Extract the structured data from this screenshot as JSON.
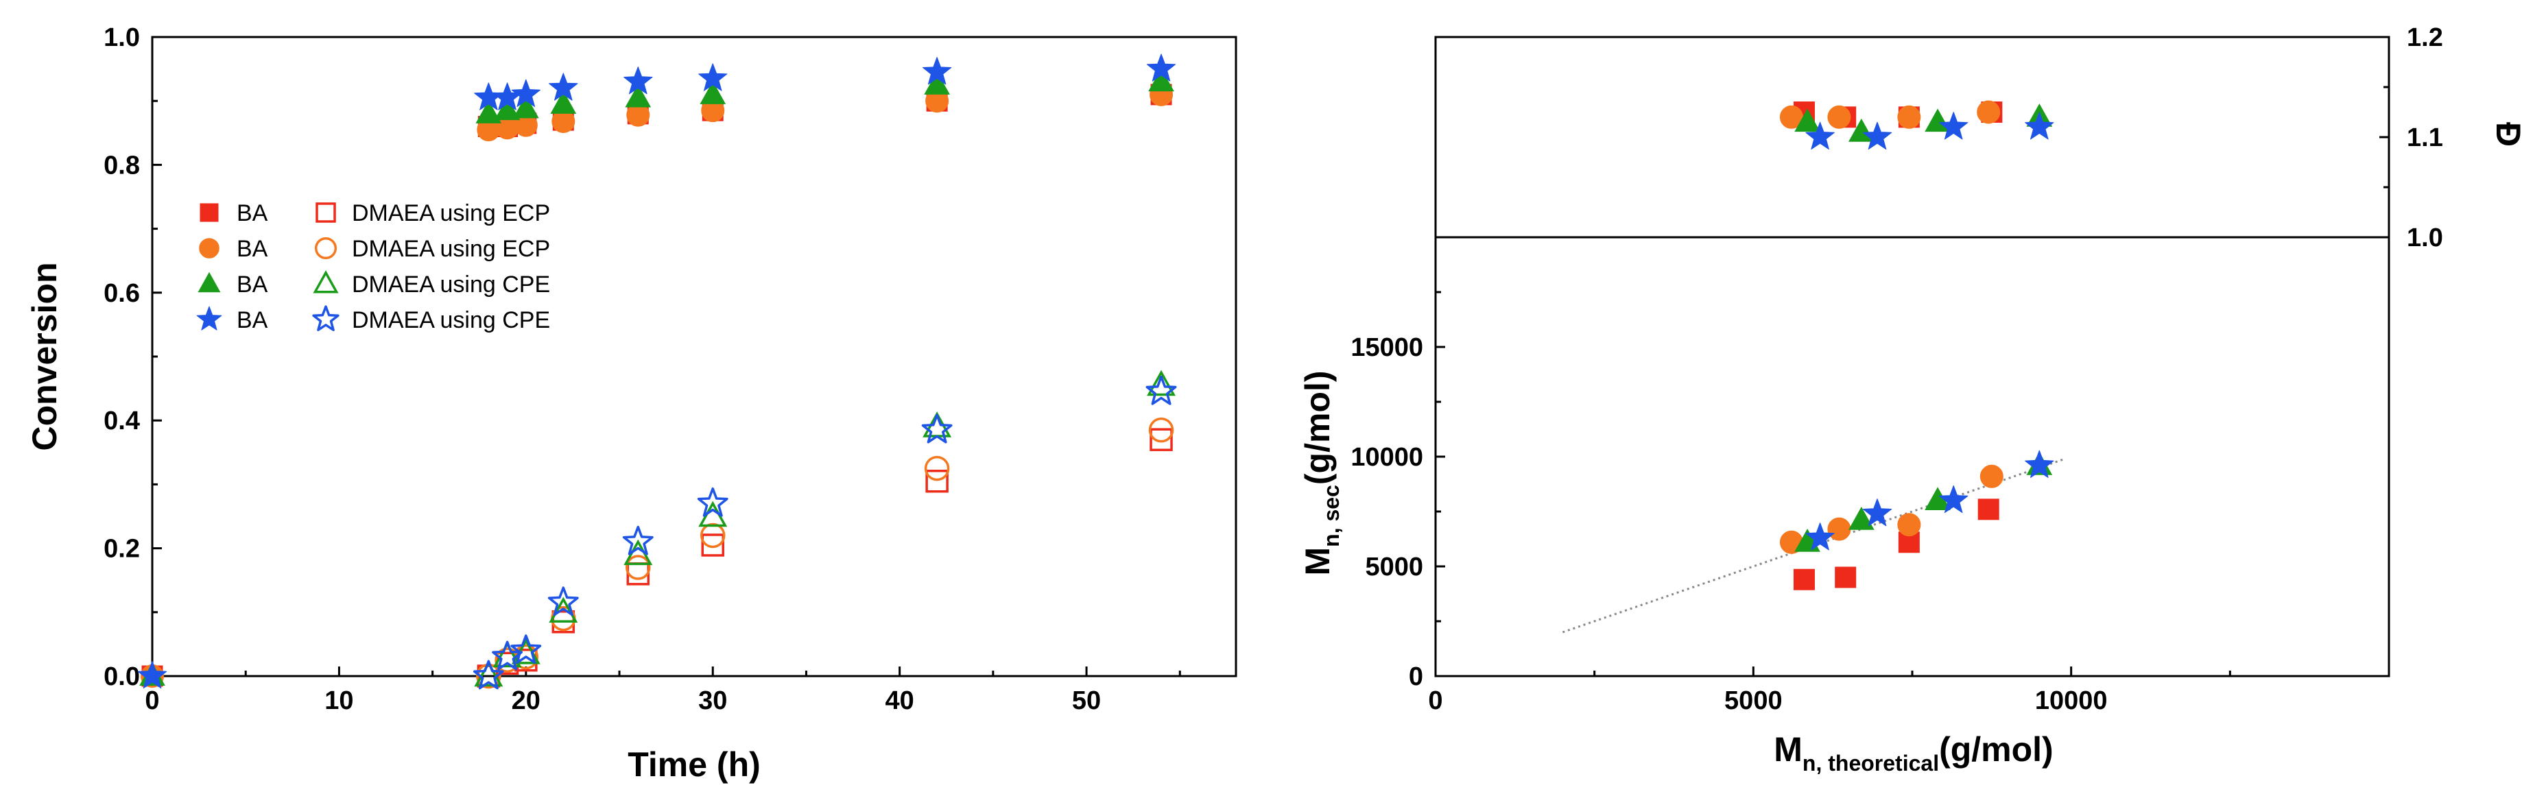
{
  "chart_data": [
    {
      "type": "scatter",
      "xlabel": "Time (h)",
      "ylabel": "Conversion",
      "xlim": [
        0,
        58
      ],
      "ylim": [
        0,
        1.0
      ],
      "xticks": [
        "0",
        "10",
        "20",
        "30",
        "40",
        "50"
      ],
      "yticks": [
        "0.0",
        "0.2",
        "0.4",
        "0.6",
        "0.8",
        "1.0"
      ],
      "legend": {
        "placement": "center-left",
        "rows": [
          {
            "left": "BA",
            "right": "DMAEA using ECP"
          },
          {
            "left": "BA",
            "right": "DMAEA using ECP"
          },
          {
            "left": "BA",
            "right": "DMAEA using CPE"
          },
          {
            "left": "BA",
            "right": "DMAEA using CPE"
          }
        ]
      },
      "series": [
        {
          "marker": "square",
          "filled": true,
          "color": "#ee2b1a",
          "x": [
            0,
            18,
            19,
            20,
            22,
            26,
            30,
            42,
            54
          ],
          "y": [
            0,
            0.86,
            0.86,
            0.865,
            0.87,
            0.88,
            0.885,
            0.9,
            0.91
          ]
        },
        {
          "marker": "circle",
          "filled": true,
          "color": "#f5781f",
          "x": [
            0,
            18,
            19,
            20,
            22,
            26,
            30,
            42,
            54
          ],
          "y": [
            0,
            0.855,
            0.858,
            0.862,
            0.868,
            0.878,
            0.885,
            0.9,
            0.91
          ]
        },
        {
          "marker": "triangle",
          "filled": true,
          "color": "#1a9c1a",
          "x": [
            0,
            18,
            19,
            20,
            22,
            26,
            30,
            42,
            54
          ],
          "y": [
            0,
            0.88,
            0.885,
            0.888,
            0.895,
            0.905,
            0.91,
            0.925,
            0.93
          ]
        },
        {
          "marker": "star",
          "filled": true,
          "color": "#1f55e6",
          "x": [
            0,
            18,
            19,
            20,
            22,
            26,
            30,
            42,
            54
          ],
          "y": [
            0,
            0.905,
            0.905,
            0.91,
            0.92,
            0.93,
            0.935,
            0.945,
            0.95
          ]
        },
        {
          "marker": "square",
          "filled": false,
          "color": "#ee2b1a",
          "x": [
            18,
            19,
            20,
            22,
            26,
            30,
            42,
            54
          ],
          "y": [
            0.0,
            0.02,
            0.025,
            0.085,
            0.16,
            0.205,
            0.305,
            0.37
          ]
        },
        {
          "marker": "circle",
          "filled": false,
          "color": "#f5781f",
          "x": [
            18,
            19,
            20,
            22,
            26,
            30,
            42,
            54
          ],
          "y": [
            0.0,
            0.025,
            0.03,
            0.09,
            0.17,
            0.22,
            0.325,
            0.385
          ]
        },
        {
          "marker": "triangle",
          "filled": false,
          "color": "#1a9c1a",
          "x": [
            18,
            19,
            20,
            22,
            26,
            30,
            42,
            54
          ],
          "y": [
            0.0,
            0.03,
            0.035,
            0.1,
            0.19,
            0.25,
            0.39,
            0.455
          ]
        },
        {
          "marker": "star",
          "filled": false,
          "color": "#1f55e6",
          "x": [
            18,
            19,
            20,
            22,
            26,
            30,
            42,
            54
          ],
          "y": [
            0.0,
            0.03,
            0.04,
            0.115,
            0.21,
            0.27,
            0.385,
            0.445
          ]
        }
      ]
    },
    {
      "type": "scatter",
      "ylabel": "Đ",
      "ylabel_side": "right",
      "xlim": [
        0,
        15000
      ],
      "ylim": [
        1.0,
        1.2
      ],
      "yticks": [
        "1.0",
        "1.1",
        "1.2"
      ],
      "series": [
        {
          "marker": "square",
          "filled": true,
          "color": "#ee2b1a",
          "x": [
            5800,
            6450,
            7450,
            8750
          ],
          "y": [
            1.125,
            1.12,
            1.12,
            1.125
          ]
        },
        {
          "marker": "circle",
          "filled": true,
          "color": "#f5781f",
          "x": [
            5600,
            6350,
            7450,
            8700
          ],
          "y": [
            1.12,
            1.12,
            1.12,
            1.125
          ]
        },
        {
          "marker": "triangle",
          "filled": true,
          "color": "#1a9c1a",
          "x": [
            5850,
            6700,
            7900,
            9500
          ],
          "y": [
            1.115,
            1.105,
            1.115,
            1.12
          ]
        },
        {
          "marker": "star",
          "filled": true,
          "color": "#1f55e6",
          "x": [
            6050,
            6950,
            8150,
            9500
          ],
          "y": [
            1.1,
            1.1,
            1.11,
            1.11
          ]
        }
      ]
    },
    {
      "type": "scatter",
      "xlabel_main": "M",
      "xlabel_sub": "n, theoretical",
      "xlabel_tail": "(g/mol)",
      "ylabel_main": "M",
      "ylabel_sub": "n, sec",
      "ylabel_tail": "(g/mol)",
      "xlim": [
        0,
        15000
      ],
      "ylim": [
        0,
        20000
      ],
      "xticks": [
        "0",
        "5000",
        "10000"
      ],
      "yticks": [
        "0",
        "5000",
        "10000",
        "15000"
      ],
      "reference_line": {
        "style": "dotted",
        "color": "#888888",
        "x": [
          2000,
          9900
        ],
        "y": [
          2000,
          9900
        ]
      },
      "series": [
        {
          "marker": "square",
          "filled": true,
          "color": "#ee2b1a",
          "x": [
            5800,
            6450,
            7450,
            8700
          ],
          "y": [
            4400,
            4500,
            6100,
            7600
          ]
        },
        {
          "marker": "circle",
          "filled": true,
          "color": "#f5781f",
          "x": [
            5600,
            6350,
            7450,
            8750
          ],
          "y": [
            6100,
            6700,
            6900,
            9100
          ]
        },
        {
          "marker": "triangle",
          "filled": true,
          "color": "#1a9c1a",
          "x": [
            5850,
            6700,
            7900,
            9500
          ],
          "y": [
            6100,
            7100,
            8000,
            9600
          ]
        },
        {
          "marker": "star",
          "filled": true,
          "color": "#1f55e6",
          "x": [
            6050,
            6950,
            8150,
            9500
          ],
          "y": [
            6300,
            7400,
            8000,
            9600
          ]
        }
      ]
    }
  ]
}
